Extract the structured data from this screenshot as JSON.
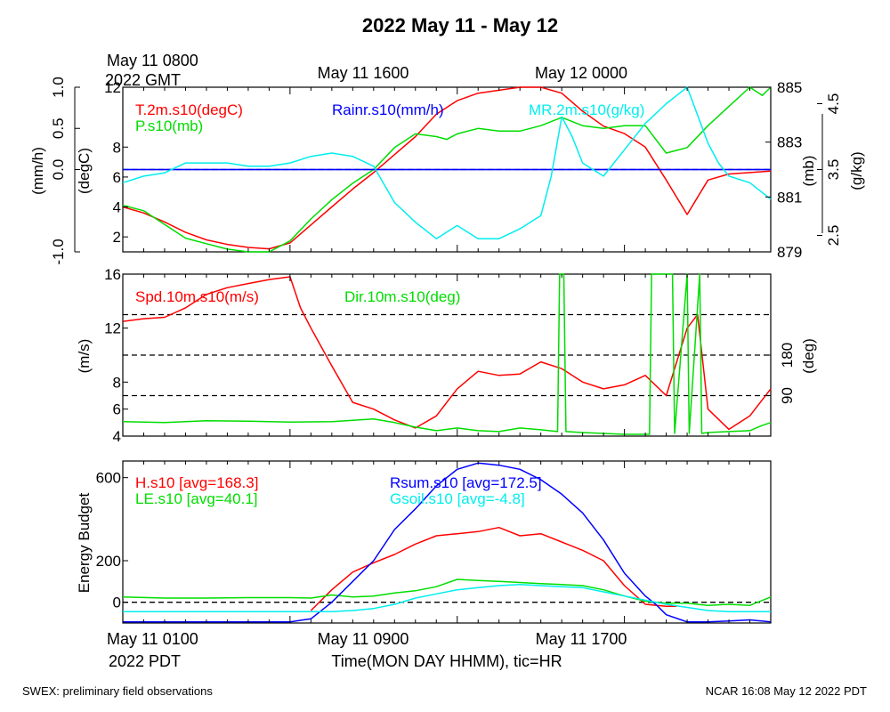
{
  "title": "2022 May 11 - May 12",
  "top_time_labels": {
    "gmt_first_line1": "May 11 0800",
    "gmt_first_line2": "2022 GMT",
    "gmt_second": "May 11 1600",
    "gmt_third": "May 12 0000"
  },
  "bottom_time_labels": {
    "pdt_first_line1": "May 11 0100",
    "pdt_first_line2": "2022 PDT",
    "pdt_second": "May 11 0900",
    "pdt_third": "May 11 1700",
    "xlabel": "Time(MON DAY HHMM), tic=HR"
  },
  "footer": {
    "left": "SWEX: preliminary field observations",
    "right": "NCAR 16:08 May 12 2022 PDT"
  },
  "colors": {
    "red": "#ff0000",
    "green": "#00dd00",
    "blue": "#0000ff",
    "cyan": "#00eeee",
    "black": "#000000"
  },
  "chart_data": [
    {
      "type": "line",
      "panel": "top",
      "x_unit": "hours since May 11 0100 PDT",
      "xlim": [
        0,
        31
      ],
      "axes": {
        "rain": {
          "label": "(mm/h)",
          "ylim": [
            -1.0,
            1.0
          ],
          "ticks": [
            "-1.0",
            "0.0",
            "0.5",
            "1.0"
          ],
          "tick_values": [
            -1.0,
            0.0,
            0.5,
            1.0
          ]
        },
        "temp": {
          "label": "(degC)",
          "ylim": [
            1,
            12
          ],
          "ticks": [
            "2",
            "4",
            "6",
            "8",
            "12"
          ],
          "tick_values": [
            2,
            4,
            6,
            8,
            12
          ]
        },
        "pressure": {
          "label": "(mb)",
          "ylim": [
            879,
            885
          ],
          "ticks": [
            "879",
            "881",
            "883",
            "885"
          ],
          "tick_values": [
            879,
            881,
            883,
            885
          ]
        },
        "mixing": {
          "label": "(g/kg)",
          "ylim": [
            2.25,
            4.75
          ],
          "ticks": [
            "2.5",
            "3.5",
            "4.5"
          ],
          "tick_values": [
            2.5,
            3.5,
            4.5
          ]
        }
      },
      "series": [
        {
          "name": "T.2m.s10(degC)",
          "color": "#ff0000",
          "axis": "temp",
          "x": [
            0,
            1,
            2,
            3,
            4,
            5,
            6,
            7,
            8,
            9,
            10,
            11,
            12,
            13,
            14,
            15,
            16,
            17,
            18,
            19,
            20,
            21,
            22,
            23,
            24,
            25,
            26,
            27,
            28,
            29,
            30,
            31
          ],
          "values": [
            4.0,
            3.6,
            3.0,
            2.3,
            1.8,
            1.5,
            1.3,
            1.2,
            1.6,
            2.8,
            4.0,
            5.2,
            6.3,
            7.5,
            8.7,
            10.2,
            11.1,
            11.6,
            11.8,
            12.0,
            12.0,
            11.6,
            10.4,
            9.4,
            8.9,
            8.0,
            5.8,
            3.5,
            5.8,
            6.2,
            6.3,
            6.4
          ]
        },
        {
          "name": "P.s10(mb)",
          "color": "#00dd00",
          "axis": "pressure",
          "x": [
            0,
            1,
            2,
            3,
            4,
            5,
            6,
            7,
            8,
            9,
            10,
            11,
            12,
            13,
            14,
            15,
            15.5,
            16,
            17,
            18,
            19,
            20,
            21,
            22,
            23,
            24,
            25,
            26,
            27,
            28,
            29,
            30,
            30.6,
            31
          ],
          "values": [
            880.7,
            880.5,
            880.0,
            879.5,
            879.3,
            879.1,
            879.0,
            879.0,
            879.4,
            880.2,
            880.9,
            881.5,
            882.0,
            882.8,
            883.3,
            883.2,
            883.1,
            883.3,
            883.5,
            883.4,
            883.4,
            883.6,
            883.9,
            883.6,
            883.5,
            883.6,
            883.6,
            882.6,
            882.8,
            883.6,
            884.3,
            885.0,
            884.7,
            885.0
          ]
        },
        {
          "name": "Rainr.s10(mm/h)",
          "color": "#0000ff",
          "axis": "rain",
          "x": [
            0,
            31
          ],
          "values": [
            0.0,
            0.0
          ]
        },
        {
          "name": "MR.2m.s10(g/kg)",
          "color": "#00eeee",
          "axis": "mixing",
          "x": [
            0,
            1,
            2,
            3,
            4,
            5,
            6,
            7,
            8,
            9,
            10,
            11,
            12,
            13,
            14,
            15,
            16,
            17,
            18,
            19,
            20,
            20.5,
            21,
            21.5,
            22,
            23,
            24,
            25,
            26,
            27,
            28,
            28.5,
            29,
            30,
            31
          ],
          "values": [
            3.3,
            3.4,
            3.45,
            3.6,
            3.6,
            3.6,
            3.55,
            3.55,
            3.6,
            3.7,
            3.75,
            3.7,
            3.55,
            3.0,
            2.7,
            2.45,
            2.65,
            2.45,
            2.45,
            2.6,
            2.8,
            3.4,
            4.3,
            4.0,
            3.6,
            3.4,
            3.8,
            4.2,
            4.5,
            4.75,
            3.9,
            3.6,
            3.4,
            3.3,
            3.05
          ]
        }
      ],
      "reference_lines": [
        {
          "axis": "rain",
          "value": 0.0,
          "style": "solid",
          "color": "#0000ff"
        },
        {
          "axis": "temp",
          "value": 6.5,
          "style": "dashed",
          "color": "#000000"
        }
      ]
    },
    {
      "type": "line",
      "panel": "middle",
      "x_unit": "hours since May 11 0100 PDT",
      "xlim": [
        0,
        31
      ],
      "axes": {
        "speed": {
          "label": "(m/s)",
          "ylim": [
            4,
            16
          ],
          "ticks": [
            "4",
            "6",
            "8",
            "12",
            "16"
          ],
          "tick_values": [
            4,
            6,
            8,
            12,
            16
          ]
        },
        "direction": {
          "label": "(deg)",
          "ylim": [
            0,
            360
          ],
          "ticks": [
            "90",
            "180"
          ],
          "tick_values": [
            90,
            180
          ]
        }
      },
      "series": [
        {
          "name": "Spd.10m.s10(m/s)",
          "color": "#ff0000",
          "axis": "speed",
          "x": [
            0,
            1,
            2,
            3,
            4,
            5,
            6,
            7,
            8,
            8.5,
            9,
            10,
            11,
            12,
            13,
            14,
            15,
            16,
            17,
            18,
            19,
            20,
            21,
            22,
            23,
            24,
            25,
            26,
            27,
            27.5,
            28,
            29,
            30,
            31
          ],
          "values": [
            12.5,
            12.7,
            12.8,
            13.5,
            14.5,
            15.0,
            15.3,
            15.6,
            15.8,
            13.5,
            12.0,
            9.2,
            6.5,
            6.0,
            5.2,
            4.6,
            5.5,
            7.5,
            8.8,
            8.5,
            8.6,
            9.5,
            9.0,
            8.0,
            7.5,
            7.8,
            8.5,
            7.0,
            12.0,
            13.0,
            6.0,
            4.5,
            5.5,
            7.5
          ]
        },
        {
          "name": "Dir.10m.s10(deg)",
          "color": "#00dd00",
          "axis": "direction",
          "x": [
            0,
            2,
            4,
            6,
            8,
            10,
            11,
            12,
            13,
            14,
            15,
            16,
            17,
            18,
            19,
            20,
            20.8,
            20.9,
            21.1,
            21.2,
            22,
            23,
            24,
            25,
            25.2,
            25.3,
            26.3,
            26.4,
            27.0,
            27.1,
            27.6,
            27.7,
            28,
            29,
            30,
            30.6,
            31
          ],
          "values": [
            32,
            30,
            34,
            33,
            31,
            32,
            35,
            38,
            30,
            20,
            12,
            18,
            12,
            10,
            18,
            14,
            10,
            360,
            360,
            10,
            8,
            6,
            4,
            4,
            4,
            360,
            360,
            6,
            360,
            6,
            360,
            6,
            8,
            10,
            12,
            24,
            30
          ]
        }
      ],
      "reference_lines": [
        {
          "axis": "direction",
          "value": 90,
          "style": "dashed",
          "color": "#000000"
        },
        {
          "axis": "direction",
          "value": 180,
          "style": "dashed",
          "color": "#000000"
        },
        {
          "axis": "direction",
          "value": 270,
          "style": "dashed",
          "color": "#000000"
        }
      ]
    },
    {
      "type": "line",
      "panel": "bottom",
      "x_unit": "hours since May 11 0100 PDT",
      "xlim": [
        0,
        31
      ],
      "ylabel": "Energy Budget",
      "ylim": [
        -100,
        680
      ],
      "ticks": [
        "0",
        "200",
        "600"
      ],
      "tick_values": [
        0,
        200,
        600
      ],
      "series": [
        {
          "name": "H.s10 [avg=168.3]",
          "color": "#ff0000",
          "x": [
            9,
            10,
            11,
            12,
            13,
            14,
            15,
            16,
            17,
            18,
            19,
            20,
            21,
            22,
            23,
            24,
            25,
            26,
            26.5
          ],
          "values": [
            -40,
            60,
            145,
            190,
            230,
            280,
            320,
            330,
            340,
            360,
            320,
            330,
            290,
            250,
            200,
            80,
            -10,
            -20,
            -20
          ]
        },
        {
          "name": "LE.s10 [avg=40.1]",
          "color": "#00dd00",
          "x": [
            0,
            2,
            4,
            6,
            8,
            9,
            10,
            11,
            12,
            13,
            14,
            15,
            16,
            17,
            18,
            19,
            20,
            21,
            22,
            23,
            24,
            25,
            26,
            27,
            28,
            29,
            30,
            31
          ],
          "values": [
            25,
            20,
            20,
            22,
            22,
            20,
            35,
            25,
            30,
            45,
            55,
            75,
            110,
            105,
            100,
            95,
            90,
            85,
            80,
            60,
            30,
            5,
            -5,
            -5,
            -15,
            -10,
            -15,
            25
          ]
        },
        {
          "name": "Rsum.s10 [avg=172.5]",
          "color": "#0000ff",
          "x": [
            0,
            2,
            4,
            6,
            8,
            9,
            10,
            11,
            12,
            13,
            14,
            15,
            16,
            17,
            18,
            19,
            20,
            21,
            22,
            23,
            24,
            25,
            25.5,
            26,
            27,
            28,
            29,
            30,
            31
          ],
          "values": [
            -95,
            -95,
            -95,
            -95,
            -95,
            -80,
            0,
            100,
            200,
            350,
            450,
            560,
            640,
            670,
            660,
            640,
            590,
            520,
            430,
            300,
            140,
            30,
            -10,
            -60,
            -95,
            -95,
            -90,
            -85,
            -95
          ]
        },
        {
          "name": "Gsoil.s10 [avg=-4.8]",
          "color": "#00eeee",
          "x": [
            0,
            2,
            4,
            6,
            8,
            9,
            10,
            11,
            12,
            13,
            14,
            15,
            16,
            17,
            18,
            19,
            20,
            21,
            22,
            23,
            24,
            25,
            26,
            27,
            28,
            29,
            30,
            31
          ],
          "values": [
            -45,
            -45,
            -45,
            -45,
            -45,
            -45,
            -45,
            -40,
            -30,
            -10,
            20,
            40,
            60,
            70,
            80,
            85,
            80,
            75,
            70,
            50,
            30,
            10,
            -10,
            -25,
            -40,
            -45,
            -45,
            -45
          ]
        }
      ],
      "reference_lines": [
        {
          "value": 0,
          "style": "dashed",
          "color": "#000000"
        }
      ]
    }
  ]
}
